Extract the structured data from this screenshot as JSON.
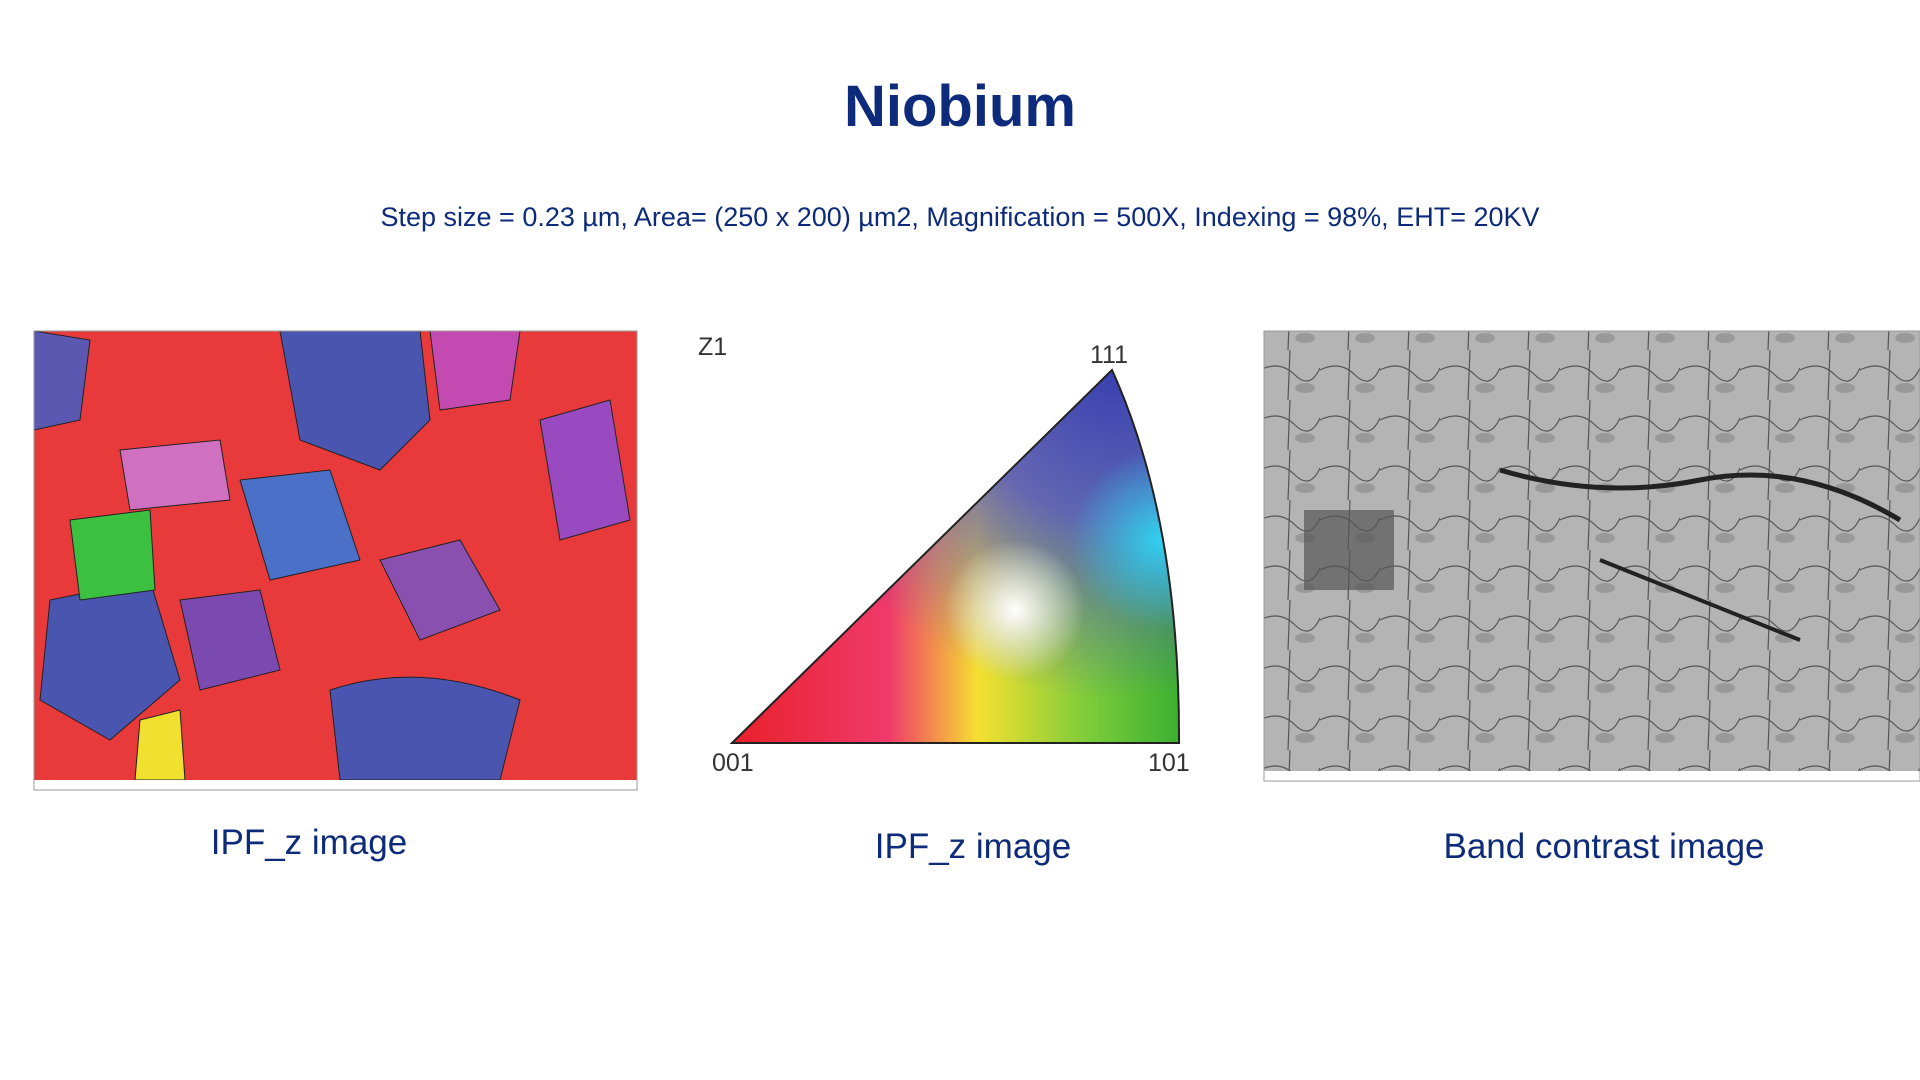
{
  "title": "Niobium",
  "subtitle": "Step size = 0.23 µm, Area= (250 x 200) µm2, Magnification = 500X, Indexing = 98%, EHT= 20KV",
  "panels": [
    {
      "caption": "IPF_z image"
    },
    {
      "caption": "IPF_z image",
      "labels": {
        "axis": "Z1",
        "top": "111",
        "left": "001",
        "right": "101"
      }
    },
    {
      "caption": "Band contrast image"
    }
  ]
}
